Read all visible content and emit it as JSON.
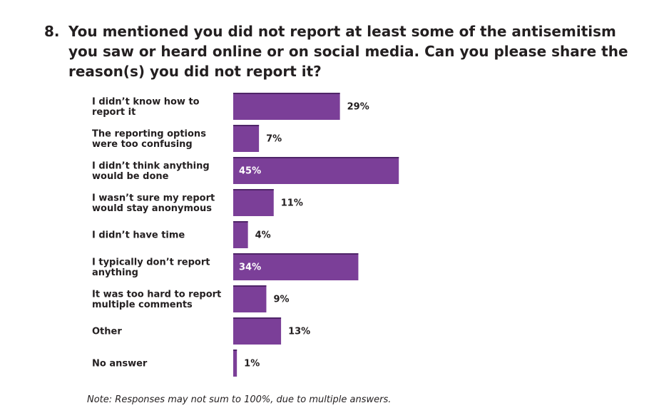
{
  "question": {
    "number": "8.",
    "text": "You mentioned you did not report at least some of the antisemitism\nyou saw or heard online or on social media. Can you please share the\nreason(s) you did not report it?"
  },
  "chart_data": {
    "type": "bar",
    "orientation": "horizontal",
    "categories": [
      [
        "I didn’t know how to",
        "report it"
      ],
      [
        "The reporting options",
        "were too confusing"
      ],
      [
        "I didn’t think anything",
        "would be done"
      ],
      [
        "I wasn’t sure my report",
        "would stay anonymous"
      ],
      [
        "I didn’t have time"
      ],
      [
        "I typically don’t report",
        "anything"
      ],
      [
        "It was too hard to report",
        "multiple comments"
      ],
      [
        "Other"
      ],
      [
        "No answer"
      ]
    ],
    "values": [
      29,
      7,
      45,
      11,
      4,
      34,
      9,
      13,
      1
    ],
    "value_labels": [
      "29%",
      "7%",
      "45%",
      "11%",
      "4%",
      "34%",
      "9%",
      "13%",
      "1%"
    ],
    "label_inside": [
      false,
      false,
      true,
      false,
      false,
      true,
      false,
      false,
      false
    ],
    "xlim": [
      0,
      100
    ],
    "grid": false,
    "colors": {
      "bar": "#7b3f98",
      "bar_top": "#4f2568",
      "label_inside": "#ffffff",
      "label_outside": "#231f20"
    }
  },
  "note": "Note: Responses may not sum to 100%, due to multiple answers."
}
